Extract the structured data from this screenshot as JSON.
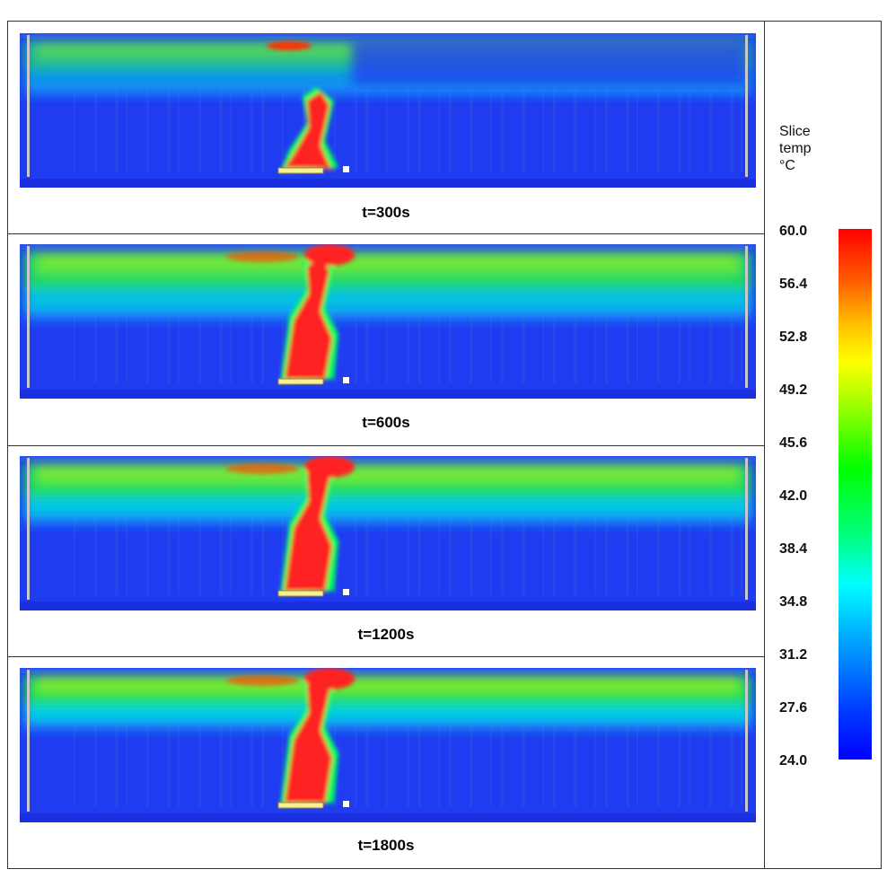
{
  "panels": [
    {
      "label": "t=300s"
    },
    {
      "label": "t=600s"
    },
    {
      "label": "t=1200s"
    },
    {
      "label": "t=1800s"
    }
  ],
  "colorbar": {
    "title": [
      "Slice",
      "temp",
      "°C"
    ],
    "ticks": [
      "60.0",
      "56.4",
      "52.8",
      "49.2",
      "45.6",
      "42.0",
      "38.4",
      "34.8",
      "31.2",
      "27.6",
      "24.0"
    ],
    "min": 24.0,
    "max": 60.0,
    "colors": {
      "hot": "#ff0000",
      "warm": "#ffff00",
      "mid": "#00ff00",
      "cool": "#00ffff",
      "cold": "#0000ff"
    }
  }
}
